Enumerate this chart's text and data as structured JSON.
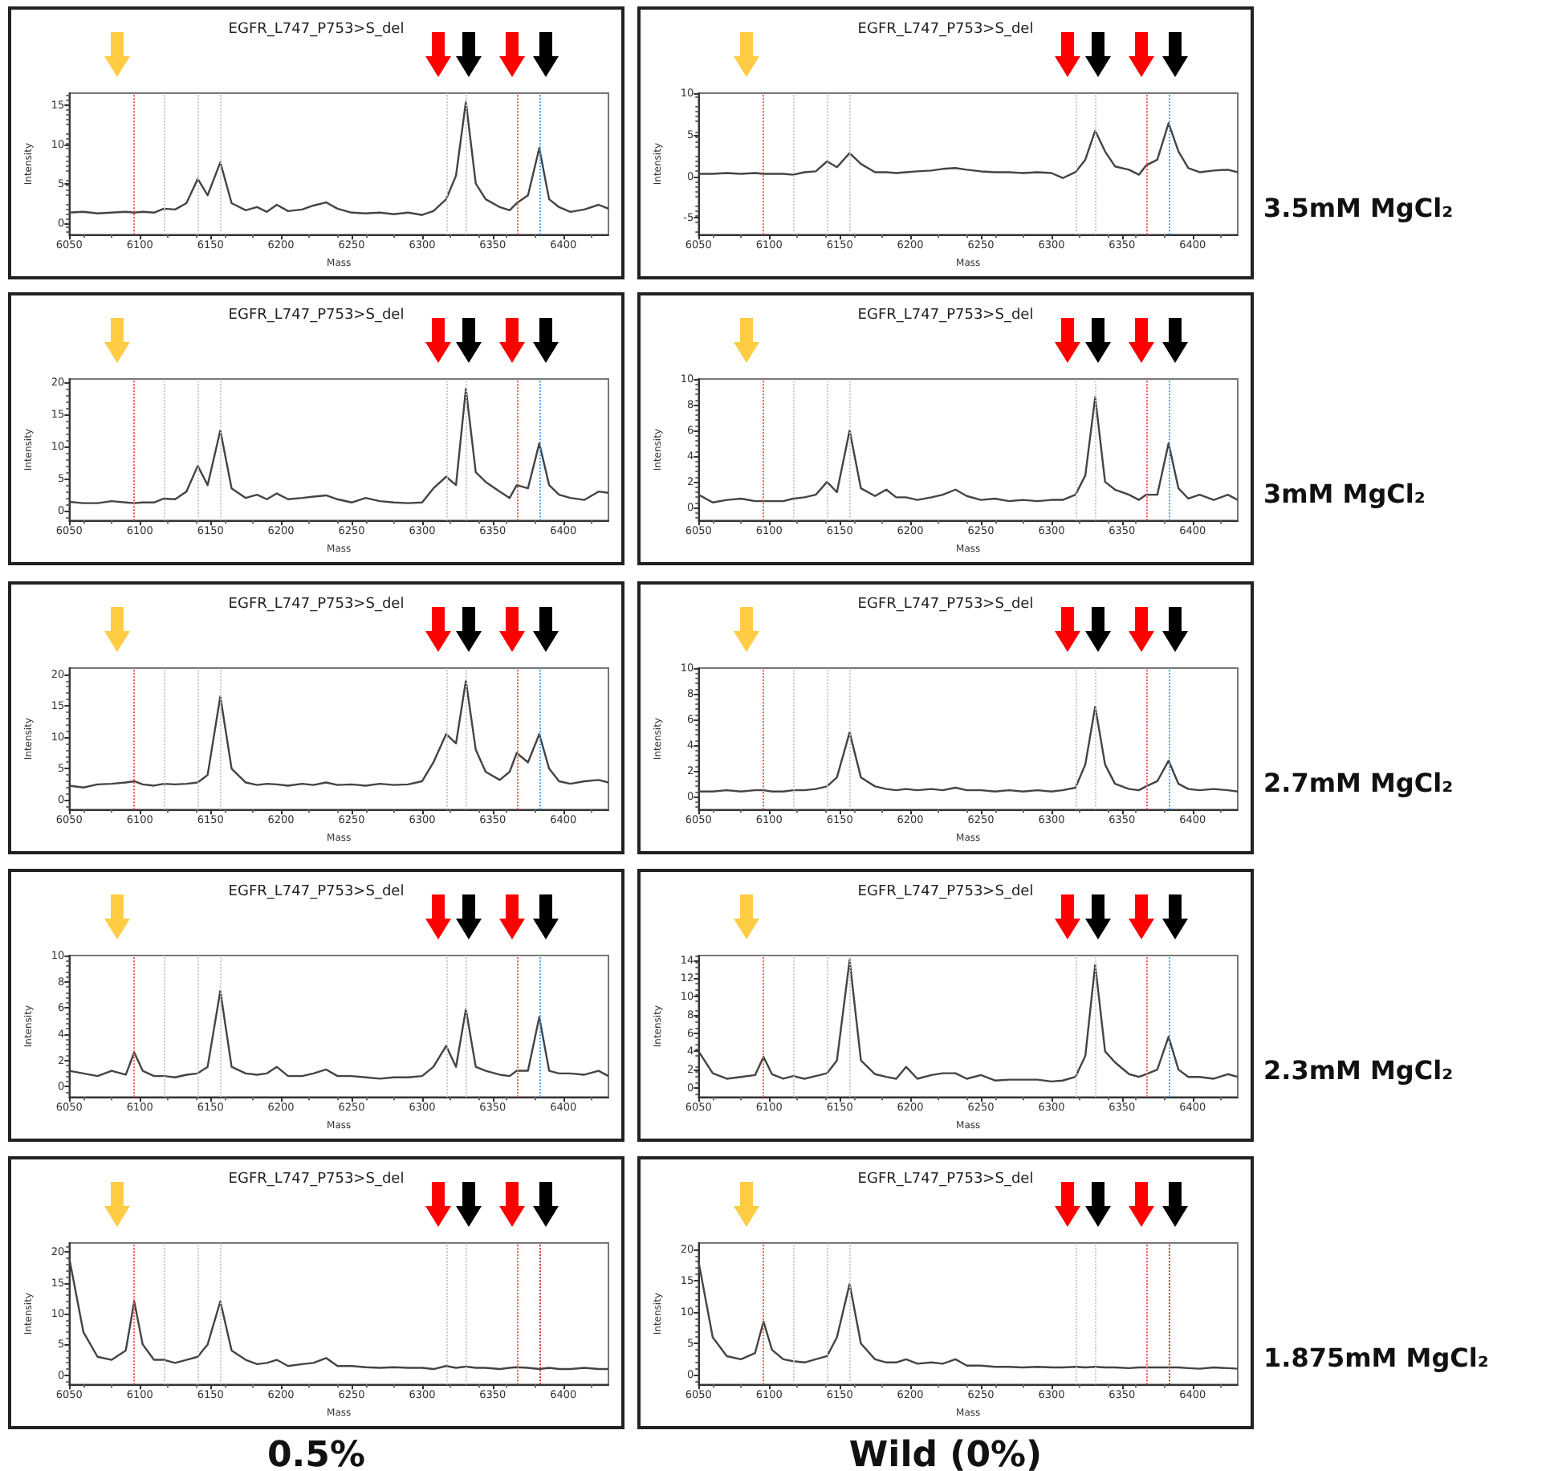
{
  "chart_data": [
    {
      "type": "line",
      "title": "EGFR_L747_P753>S_del",
      "xlabel": "Mass",
      "ylabel": "Intensity",
      "color": "#444444",
      "marker": "none",
      "line_style": "solid",
      "x": [
        6050,
        6060,
        6070,
        6080,
        6090,
        6096,
        6102,
        6110,
        6117,
        6125,
        6133,
        6141,
        6148,
        6157,
        6165,
        6175,
        6183,
        6190,
        6197,
        6205,
        6215,
        6223,
        6232,
        6240,
        6250,
        6260,
        6270,
        6280,
        6290,
        6300,
        6308,
        6317,
        6324,
        6331,
        6338,
        6345,
        6355,
        6362,
        6367,
        6375,
        6383,
        6390,
        6397,
        6405,
        6415,
        6425,
        6432
      ],
      "values": [
        1.3,
        1.4,
        1.2,
        1.3,
        1.4,
        1.3,
        1.4,
        1.3,
        1.8,
        1.7,
        2.5,
        5.6,
        3.5,
        7.7,
        2.5,
        1.6,
        2.0,
        1.4,
        2.3,
        1.5,
        1.7,
        2.2,
        2.6,
        1.8,
        1.3,
        1.2,
        1.3,
        1.1,
        1.3,
        1.0,
        1.5,
        3.0,
        6.0,
        15.4,
        5.0,
        3.0,
        2.0,
        1.6,
        2.5,
        3.5,
        9.5,
        3.0,
        2.0,
        1.4,
        1.7,
        2.3,
        1.8
      ],
      "xlim": [
        6050,
        6432
      ],
      "xticks": [
        6050,
        6100,
        6150,
        6200,
        6250,
        6300,
        6350,
        6400
      ],
      "ylim": [
        -1.5,
        16.5
      ],
      "yticks": [
        0,
        5,
        10,
        15
      ],
      "ref_lines": [
        {
          "axis": "x",
          "value": 6096,
          "color": "#ff5050",
          "line_style": "dotted"
        },
        {
          "axis": "x",
          "value": 6117,
          "color": "#c8c8c8",
          "line_style": "dotted"
        },
        {
          "axis": "x",
          "value": 6141,
          "color": "#c8c8c8",
          "line_style": "dotted"
        },
        {
          "axis": "x",
          "value": 6157,
          "color": "#c8c8c8",
          "line_style": "dotted"
        },
        {
          "axis": "x",
          "value": 6317,
          "color": "#c8c8c8",
          "line_style": "dotted"
        },
        {
          "axis": "x",
          "value": 6331,
          "color": "#c8c8c8",
          "line_style": "dotted"
        },
        {
          "axis": "x",
          "value": 6367,
          "color": "#ff5050",
          "line_style": "dotted"
        },
        {
          "axis": "x",
          "value": 6383,
          "color": "#3fa0ff",
          "line_style": "dotted"
        }
      ]
    },
    {
      "type": "line",
      "title": "EGFR_L747_P753>S_del",
      "xlabel": "Mass",
      "ylabel": "Intensity",
      "color": "#444444",
      "marker": "none",
      "line_style": "solid",
      "x": [
        6050,
        6060,
        6070,
        6080,
        6090,
        6096,
        6102,
        6110,
        6117,
        6125,
        6133,
        6141,
        6148,
        6157,
        6165,
        6175,
        6183,
        6190,
        6197,
        6205,
        6215,
        6223,
        6232,
        6240,
        6250,
        6260,
        6270,
        6280,
        6290,
        6300,
        6308,
        6317,
        6324,
        6331,
        6338,
        6345,
        6355,
        6362,
        6367,
        6375,
        6383,
        6390,
        6397,
        6405,
        6415,
        6425,
        6432
      ],
      "values": [
        0.3,
        0.3,
        0.4,
        0.3,
        0.4,
        0.3,
        0.3,
        0.3,
        0.2,
        0.5,
        0.6,
        1.8,
        1.1,
        2.8,
        1.5,
        0.5,
        0.5,
        0.4,
        0.5,
        0.6,
        0.7,
        0.9,
        1.0,
        0.8,
        0.6,
        0.5,
        0.5,
        0.4,
        0.5,
        0.4,
        -0.2,
        0.5,
        2.0,
        5.5,
        3.0,
        1.2,
        0.8,
        0.2,
        1.3,
        2.0,
        6.4,
        3.0,
        1.0,
        0.5,
        0.7,
        0.8,
        0.5
      ],
      "xlim": [
        6050,
        6432
      ],
      "xticks": [
        6050,
        6100,
        6150,
        6200,
        6250,
        6300,
        6350,
        6400
      ],
      "ylim": [
        -7,
        10
      ],
      "yticks": [
        -5,
        0,
        5,
        10
      ],
      "ref_lines": [
        {
          "axis": "x",
          "value": 6096,
          "color": "#ff5050",
          "line_style": "dotted"
        },
        {
          "axis": "x",
          "value": 6117,
          "color": "#c8c8c8",
          "line_style": "dotted"
        },
        {
          "axis": "x",
          "value": 6141,
          "color": "#c8c8c8",
          "line_style": "dotted"
        },
        {
          "axis": "x",
          "value": 6157,
          "color": "#c8c8c8",
          "line_style": "dotted"
        },
        {
          "axis": "x",
          "value": 6317,
          "color": "#c8c8c8",
          "line_style": "dotted"
        },
        {
          "axis": "x",
          "value": 6331,
          "color": "#c8c8c8",
          "line_style": "dotted"
        },
        {
          "axis": "x",
          "value": 6367,
          "color": "#ff5050",
          "line_style": "dotted"
        },
        {
          "axis": "x",
          "value": 6383,
          "color": "#3fa0ff",
          "line_style": "dotted"
        }
      ],
      "annotations": [
        "3.5mM MgCl₂"
      ]
    },
    {
      "type": "line",
      "title": "EGFR_L747_P753>S_del",
      "xlabel": "Mass",
      "ylabel": "Intensity",
      "color": "#444444",
      "marker": "none",
      "line_style": "solid",
      "x": [
        6050,
        6060,
        6070,
        6080,
        6090,
        6096,
        6102,
        6110,
        6117,
        6125,
        6133,
        6141,
        6148,
        6157,
        6165,
        6175,
        6183,
        6190,
        6197,
        6205,
        6215,
        6223,
        6232,
        6240,
        6250,
        6260,
        6270,
        6280,
        6290,
        6300,
        6308,
        6317,
        6324,
        6331,
        6338,
        6345,
        6355,
        6362,
        6367,
        6375,
        6383,
        6390,
        6397,
        6405,
        6415,
        6425,
        6432
      ],
      "values": [
        1.4,
        1.2,
        1.2,
        1.5,
        1.3,
        1.2,
        1.3,
        1.3,
        1.9,
        1.8,
        3.0,
        7.0,
        4.0,
        12.5,
        3.5,
        2.0,
        2.5,
        1.8,
        2.7,
        1.8,
        2.0,
        2.2,
        2.4,
        1.8,
        1.3,
        2.0,
        1.5,
        1.3,
        1.2,
        1.3,
        3.5,
        5.3,
        4.0,
        19.0,
        6.0,
        4.5,
        3.0,
        2.0,
        4.0,
        3.5,
        10.5,
        4.0,
        2.5,
        2.0,
        1.7,
        3.0,
        2.8
      ],
      "xlim": [
        6050,
        6432
      ],
      "xticks": [
        6050,
        6100,
        6150,
        6200,
        6250,
        6300,
        6350,
        6400
      ],
      "ylim": [
        -1.5,
        20.5
      ],
      "yticks": [
        0,
        5,
        10,
        15,
        20
      ],
      "ref_lines": [
        {
          "axis": "x",
          "value": 6096,
          "color": "#ff5050",
          "line_style": "dotted"
        },
        {
          "axis": "x",
          "value": 6117,
          "color": "#c8c8c8",
          "line_style": "dotted"
        },
        {
          "axis": "x",
          "value": 6141,
          "color": "#c8c8c8",
          "line_style": "dotted"
        },
        {
          "axis": "x",
          "value": 6157,
          "color": "#c8c8c8",
          "line_style": "dotted"
        },
        {
          "axis": "x",
          "value": 6317,
          "color": "#c8c8c8",
          "line_style": "dotted"
        },
        {
          "axis": "x",
          "value": 6331,
          "color": "#c8c8c8",
          "line_style": "dotted"
        },
        {
          "axis": "x",
          "value": 6367,
          "color": "#ff5050",
          "line_style": "dotted"
        },
        {
          "axis": "x",
          "value": 6383,
          "color": "#3fa0ff",
          "line_style": "dotted"
        }
      ]
    },
    {
      "type": "line",
      "title": "EGFR_L747_P753>S_del",
      "xlabel": "Mass",
      "ylabel": "Intensity",
      "color": "#444444",
      "marker": "none",
      "line_style": "solid",
      "x": [
        6050,
        6060,
        6070,
        6080,
        6090,
        6096,
        6102,
        6110,
        6117,
        6125,
        6133,
        6141,
        6148,
        6157,
        6165,
        6175,
        6183,
        6190,
        6197,
        6205,
        6215,
        6223,
        6232,
        6240,
        6250,
        6260,
        6270,
        6280,
        6290,
        6300,
        6308,
        6317,
        6324,
        6331,
        6338,
        6345,
        6355,
        6362,
        6367,
        6375,
        6383,
        6390,
        6397,
        6405,
        6415,
        6425,
        6432
      ],
      "values": [
        1.0,
        0.4,
        0.6,
        0.7,
        0.5,
        0.5,
        0.5,
        0.5,
        0.7,
        0.8,
        1.0,
        2.0,
        1.2,
        6.0,
        1.5,
        0.9,
        1.4,
        0.8,
        0.8,
        0.6,
        0.8,
        1.0,
        1.4,
        0.9,
        0.6,
        0.7,
        0.5,
        0.6,
        0.5,
        0.6,
        0.6,
        1.0,
        2.5,
        8.6,
        2.0,
        1.4,
        1.0,
        0.6,
        1.0,
        1.0,
        5.0,
        1.5,
        0.7,
        1.0,
        0.6,
        1.0,
        0.6
      ],
      "xlim": [
        6050,
        6432
      ],
      "xticks": [
        6050,
        6100,
        6150,
        6200,
        6250,
        6300,
        6350,
        6400
      ],
      "ylim": [
        -1,
        10
      ],
      "yticks": [
        0,
        2,
        4,
        6,
        8,
        10
      ],
      "ref_lines": [
        {
          "axis": "x",
          "value": 6096,
          "color": "#ff5050",
          "line_style": "dotted"
        },
        {
          "axis": "x",
          "value": 6117,
          "color": "#c8c8c8",
          "line_style": "dotted"
        },
        {
          "axis": "x",
          "value": 6141,
          "color": "#c8c8c8",
          "line_style": "dotted"
        },
        {
          "axis": "x",
          "value": 6157,
          "color": "#c8c8c8",
          "line_style": "dotted"
        },
        {
          "axis": "x",
          "value": 6317,
          "color": "#c8c8c8",
          "line_style": "dotted"
        },
        {
          "axis": "x",
          "value": 6331,
          "color": "#c8c8c8",
          "line_style": "dotted"
        },
        {
          "axis": "x",
          "value": 6367,
          "color": "#ff5050",
          "line_style": "dotted"
        },
        {
          "axis": "x",
          "value": 6383,
          "color": "#3fa0ff",
          "line_style": "dotted"
        }
      ],
      "annotations": [
        "3mM MgCl₂"
      ]
    },
    {
      "type": "line",
      "title": "EGFR_L747_P753>S_del",
      "xlabel": "Mass",
      "ylabel": "Intensity",
      "color": "#444444",
      "marker": "none",
      "line_style": "solid",
      "x": [
        6050,
        6060,
        6070,
        6080,
        6090,
        6096,
        6102,
        6110,
        6117,
        6125,
        6133,
        6141,
        6148,
        6157,
        6165,
        6175,
        6183,
        6190,
        6197,
        6205,
        6215,
        6223,
        6232,
        6240,
        6250,
        6260,
        6270,
        6280,
        6290,
        6300,
        6308,
        6317,
        6324,
        6331,
        6338,
        6345,
        6355,
        6362,
        6367,
        6375,
        6383,
        6390,
        6397,
        6405,
        6415,
        6425,
        6432
      ],
      "values": [
        2.3,
        2.0,
        2.5,
        2.6,
        2.8,
        3.0,
        2.5,
        2.3,
        2.6,
        2.5,
        2.6,
        2.8,
        4.0,
        16.5,
        5.0,
        2.8,
        2.4,
        2.6,
        2.5,
        2.3,
        2.6,
        2.4,
        2.8,
        2.4,
        2.5,
        2.3,
        2.6,
        2.4,
        2.5,
        3.0,
        6.0,
        10.5,
        9.0,
        19.0,
        8.0,
        4.5,
        3.2,
        4.5,
        7.5,
        6.0,
        10.5,
        5.0,
        3.0,
        2.6,
        3.0,
        3.2,
        2.8
      ],
      "xlim": [
        6050,
        6432
      ],
      "xticks": [
        6050,
        6100,
        6150,
        6200,
        6250,
        6300,
        6350,
        6400
      ],
      "ylim": [
        -1.5,
        21
      ],
      "yticks": [
        0,
        5,
        10,
        15,
        20
      ],
      "ref_lines": [
        {
          "axis": "x",
          "value": 6096,
          "color": "#ff5050",
          "line_style": "dotted"
        },
        {
          "axis": "x",
          "value": 6117,
          "color": "#c8c8c8",
          "line_style": "dotted"
        },
        {
          "axis": "x",
          "value": 6141,
          "color": "#c8c8c8",
          "line_style": "dotted"
        },
        {
          "axis": "x",
          "value": 6157,
          "color": "#c8c8c8",
          "line_style": "dotted"
        },
        {
          "axis": "x",
          "value": 6317,
          "color": "#c8c8c8",
          "line_style": "dotted"
        },
        {
          "axis": "x",
          "value": 6331,
          "color": "#c8c8c8",
          "line_style": "dotted"
        },
        {
          "axis": "x",
          "value": 6367,
          "color": "#ff5050",
          "line_style": "dotted"
        },
        {
          "axis": "x",
          "value": 6383,
          "color": "#3fa0ff",
          "line_style": "dotted"
        }
      ]
    },
    {
      "type": "line",
      "title": "EGFR_L747_P753>S_del",
      "xlabel": "Mass",
      "ylabel": "Intensity",
      "color": "#444444",
      "marker": "none",
      "line_style": "solid",
      "x": [
        6050,
        6060,
        6070,
        6080,
        6090,
        6096,
        6102,
        6110,
        6117,
        6125,
        6133,
        6141,
        6148,
        6157,
        6165,
        6175,
        6183,
        6190,
        6197,
        6205,
        6215,
        6223,
        6232,
        6240,
        6250,
        6260,
        6270,
        6280,
        6290,
        6300,
        6308,
        6317,
        6324,
        6331,
        6338,
        6345,
        6355,
        6362,
        6367,
        6375,
        6383,
        6390,
        6397,
        6405,
        6415,
        6425,
        6432
      ],
      "values": [
        0.4,
        0.4,
        0.5,
        0.4,
        0.5,
        0.5,
        0.4,
        0.4,
        0.5,
        0.5,
        0.6,
        0.8,
        1.5,
        5.0,
        1.5,
        0.8,
        0.6,
        0.5,
        0.6,
        0.5,
        0.6,
        0.5,
        0.7,
        0.5,
        0.5,
        0.4,
        0.5,
        0.4,
        0.5,
        0.4,
        0.5,
        0.7,
        2.5,
        7.0,
        2.5,
        1.0,
        0.6,
        0.5,
        0.8,
        1.2,
        2.8,
        1.0,
        0.6,
        0.5,
        0.6,
        0.5,
        0.4
      ],
      "xlim": [
        6050,
        6432
      ],
      "xticks": [
        6050,
        6100,
        6150,
        6200,
        6250,
        6300,
        6350,
        6400
      ],
      "ylim": [
        -1,
        10
      ],
      "yticks": [
        0,
        2,
        4,
        6,
        8,
        10
      ],
      "ref_lines": [
        {
          "axis": "x",
          "value": 6096,
          "color": "#ff5050",
          "line_style": "dotted"
        },
        {
          "axis": "x",
          "value": 6117,
          "color": "#c8c8c8",
          "line_style": "dotted"
        },
        {
          "axis": "x",
          "value": 6141,
          "color": "#c8c8c8",
          "line_style": "dotted"
        },
        {
          "axis": "x",
          "value": 6157,
          "color": "#c8c8c8",
          "line_style": "dotted"
        },
        {
          "axis": "x",
          "value": 6317,
          "color": "#c8c8c8",
          "line_style": "dotted"
        },
        {
          "axis": "x",
          "value": 6331,
          "color": "#c8c8c8",
          "line_style": "dotted"
        },
        {
          "axis": "x",
          "value": 6367,
          "color": "#ff5050",
          "line_style": "dotted"
        },
        {
          "axis": "x",
          "value": 6383,
          "color": "#3fa0ff",
          "line_style": "dotted"
        }
      ],
      "annotations": [
        "2.7mM MgCl₂"
      ]
    },
    {
      "type": "line",
      "title": "EGFR_L747_P753>S_del",
      "xlabel": "Mass",
      "ylabel": "Intensity",
      "color": "#444444",
      "marker": "none",
      "line_style": "solid",
      "x": [
        6050,
        6060,
        6070,
        6080,
        6090,
        6096,
        6102,
        6110,
        6117,
        6125,
        6133,
        6141,
        6148,
        6157,
        6165,
        6175,
        6183,
        6190,
        6197,
        6205,
        6215,
        6223,
        6232,
        6240,
        6250,
        6260,
        6270,
        6280,
        6290,
        6300,
        6308,
        6317,
        6324,
        6331,
        6338,
        6345,
        6355,
        6362,
        6367,
        6375,
        6383,
        6390,
        6397,
        6405,
        6415,
        6425,
        6432
      ],
      "values": [
        1.2,
        1.0,
        0.8,
        1.2,
        0.9,
        2.6,
        1.2,
        0.8,
        0.8,
        0.7,
        0.9,
        1.0,
        1.5,
        7.3,
        1.5,
        1.0,
        0.9,
        1.0,
        1.5,
        0.8,
        0.8,
        1.0,
        1.3,
        0.8,
        0.8,
        0.7,
        0.6,
        0.7,
        0.7,
        0.8,
        1.5,
        3.1,
        1.5,
        5.9,
        1.5,
        1.2,
        0.9,
        0.8,
        1.2,
        1.2,
        5.3,
        1.2,
        1.0,
        1.0,
        0.9,
        1.2,
        0.8
      ],
      "xlim": [
        6050,
        6432
      ],
      "xticks": [
        6050,
        6100,
        6150,
        6200,
        6250,
        6300,
        6350,
        6400
      ],
      "ylim": [
        -0.8,
        10
      ],
      "yticks": [
        0,
        2,
        4,
        6,
        8,
        10
      ],
      "ref_lines": [
        {
          "axis": "x",
          "value": 6096,
          "color": "#ff5050",
          "line_style": "dotted"
        },
        {
          "axis": "x",
          "value": 6117,
          "color": "#c8c8c8",
          "line_style": "dotted"
        },
        {
          "axis": "x",
          "value": 6141,
          "color": "#c8c8c8",
          "line_style": "dotted"
        },
        {
          "axis": "x",
          "value": 6157,
          "color": "#c8c8c8",
          "line_style": "dotted"
        },
        {
          "axis": "x",
          "value": 6317,
          "color": "#c8c8c8",
          "line_style": "dotted"
        },
        {
          "axis": "x",
          "value": 6331,
          "color": "#c8c8c8",
          "line_style": "dotted"
        },
        {
          "axis": "x",
          "value": 6367,
          "color": "#ff5050",
          "line_style": "dotted"
        },
        {
          "axis": "x",
          "value": 6383,
          "color": "#3fa0ff",
          "line_style": "dotted"
        }
      ]
    },
    {
      "type": "line",
      "title": "EGFR_L747_P753>S_del",
      "xlabel": "Mass",
      "ylabel": "Intensity",
      "color": "#444444",
      "marker": "none",
      "line_style": "solid",
      "x": [
        6050,
        6060,
        6070,
        6080,
        6090,
        6096,
        6102,
        6110,
        6117,
        6125,
        6133,
        6141,
        6148,
        6157,
        6165,
        6175,
        6183,
        6190,
        6197,
        6205,
        6215,
        6223,
        6232,
        6240,
        6250,
        6260,
        6270,
        6280,
        6290,
        6300,
        6308,
        6317,
        6324,
        6331,
        6338,
        6345,
        6355,
        6362,
        6367,
        6375,
        6383,
        6390,
        6397,
        6405,
        6415,
        6425,
        6432
      ],
      "values": [
        4.0,
        1.6,
        1.0,
        1.2,
        1.4,
        3.4,
        1.5,
        1.0,
        1.3,
        1.0,
        1.3,
        1.6,
        3.0,
        14.0,
        3.0,
        1.5,
        1.2,
        1.0,
        2.3,
        1.0,
        1.4,
        1.6,
        1.6,
        1.0,
        1.4,
        0.8,
        0.9,
        0.9,
        0.9,
        0.7,
        0.8,
        1.2,
        3.5,
        13.5,
        4.0,
        2.8,
        1.5,
        1.2,
        1.5,
        2.0,
        5.6,
        2.0,
        1.2,
        1.2,
        1.0,
        1.5,
        1.2
      ],
      "xlim": [
        6050,
        6432
      ],
      "xticks": [
        6050,
        6100,
        6150,
        6200,
        6250,
        6300,
        6350,
        6400
      ],
      "ylim": [
        -1,
        14.5
      ],
      "yticks": [
        0,
        2,
        4,
        6,
        8,
        10,
        12,
        14
      ],
      "ref_lines": [
        {
          "axis": "x",
          "value": 6096,
          "color": "#ff5050",
          "line_style": "dotted"
        },
        {
          "axis": "x",
          "value": 6117,
          "color": "#c8c8c8",
          "line_style": "dotted"
        },
        {
          "axis": "x",
          "value": 6141,
          "color": "#c8c8c8",
          "line_style": "dotted"
        },
        {
          "axis": "x",
          "value": 6157,
          "color": "#c8c8c8",
          "line_style": "dotted"
        },
        {
          "axis": "x",
          "value": 6317,
          "color": "#c8c8c8",
          "line_style": "dotted"
        },
        {
          "axis": "x",
          "value": 6331,
          "color": "#c8c8c8",
          "line_style": "dotted"
        },
        {
          "axis": "x",
          "value": 6367,
          "color": "#ff5050",
          "line_style": "dotted"
        },
        {
          "axis": "x",
          "value": 6383,
          "color": "#3fa0ff",
          "line_style": "dotted"
        }
      ],
      "annotations": [
        "2.3mM MgCl₂"
      ]
    },
    {
      "type": "line",
      "title": "EGFR_L747_P753>S_del",
      "xlabel": "Mass",
      "ylabel": "Intensity",
      "color": "#444444",
      "marker": "none",
      "line_style": "solid",
      "x": [
        6050,
        6060,
        6070,
        6080,
        6090,
        6096,
        6102,
        6110,
        6117,
        6125,
        6133,
        6141,
        6148,
        6157,
        6165,
        6175,
        6183,
        6190,
        6197,
        6205,
        6215,
        6223,
        6232,
        6240,
        6250,
        6260,
        6270,
        6280,
        6290,
        6300,
        6308,
        6317,
        6324,
        6331,
        6338,
        6345,
        6355,
        6362,
        6367,
        6375,
        6383,
        6390,
        6397,
        6405,
        6415,
        6425,
        6432
      ],
      "values": [
        19,
        7,
        3,
        2.5,
        4,
        12,
        5,
        2.5,
        2.5,
        2,
        2.5,
        3,
        5,
        12,
        4,
        2.5,
        1.8,
        2,
        2.5,
        1.5,
        1.8,
        2,
        2.8,
        1.5,
        1.5,
        1.3,
        1.2,
        1.3,
        1.2,
        1.2,
        1.0,
        1.5,
        1.2,
        1.4,
        1.2,
        1.2,
        1.0,
        1.2,
        1.3,
        1.2,
        1.0,
        1.2,
        1.0,
        1.0,
        1.2,
        1.0,
        1.0
      ],
      "xlim": [
        6050,
        6432
      ],
      "xticks": [
        6050,
        6100,
        6150,
        6200,
        6250,
        6300,
        6350,
        6400
      ],
      "ylim": [
        -1.5,
        21.5
      ],
      "yticks": [
        0,
        5,
        10,
        15,
        20
      ],
      "ref_lines": [
        {
          "axis": "x",
          "value": 6096,
          "color": "#ff5050",
          "line_style": "dotted"
        },
        {
          "axis": "x",
          "value": 6117,
          "color": "#c8c8c8",
          "line_style": "dotted"
        },
        {
          "axis": "x",
          "value": 6141,
          "color": "#c8c8c8",
          "line_style": "dotted"
        },
        {
          "axis": "x",
          "value": 6157,
          "color": "#c8c8c8",
          "line_style": "dotted"
        },
        {
          "axis": "x",
          "value": 6317,
          "color": "#c8c8c8",
          "line_style": "dotted"
        },
        {
          "axis": "x",
          "value": 6331,
          "color": "#c8c8c8",
          "line_style": "dotted"
        },
        {
          "axis": "x",
          "value": 6367,
          "color": "#ff5050",
          "line_style": "dotted"
        },
        {
          "axis": "x",
          "value": 6383,
          "color": "#c03030",
          "line_style": "dotted"
        }
      ],
      "annotations": [
        "0.5%"
      ]
    },
    {
      "type": "line",
      "title": "EGFR_L747_P753>S_del",
      "xlabel": "Mass",
      "ylabel": "Intensity",
      "color": "#444444",
      "marker": "none",
      "line_style": "solid",
      "x": [
        6050,
        6060,
        6070,
        6080,
        6090,
        6096,
        6102,
        6110,
        6117,
        6125,
        6133,
        6141,
        6148,
        6157,
        6165,
        6175,
        6183,
        6190,
        6197,
        6205,
        6215,
        6223,
        6232,
        6240,
        6250,
        6260,
        6270,
        6280,
        6290,
        6300,
        6308,
        6317,
        6324,
        6331,
        6338,
        6345,
        6355,
        6362,
        6367,
        6375,
        6383,
        6390,
        6397,
        6405,
        6415,
        6425,
        6432
      ],
      "values": [
        18,
        6,
        3,
        2.5,
        3.5,
        8.5,
        4,
        2.5,
        2.2,
        2,
        2.5,
        3,
        6,
        14.5,
        5,
        2.5,
        2,
        2,
        2.5,
        1.8,
        2,
        1.8,
        2.5,
        1.5,
        1.5,
        1.3,
        1.3,
        1.2,
        1.3,
        1.2,
        1.2,
        1.3,
        1.2,
        1.3,
        1.2,
        1.2,
        1.1,
        1.2,
        1.2,
        1.2,
        1.2,
        1.2,
        1.1,
        1.0,
        1.2,
        1.1,
        1.0
      ],
      "xlim": [
        6050,
        6432
      ],
      "xticks": [
        6050,
        6100,
        6150,
        6200,
        6250,
        6300,
        6350,
        6400
      ],
      "ylim": [
        -1.5,
        21
      ],
      "yticks": [
        0,
        5,
        10,
        15,
        20
      ],
      "ref_lines": [
        {
          "axis": "x",
          "value": 6096,
          "color": "#ff5050",
          "line_style": "dotted"
        },
        {
          "axis": "x",
          "value": 6117,
          "color": "#c8c8c8",
          "line_style": "dotted"
        },
        {
          "axis": "x",
          "value": 6141,
          "color": "#c8c8c8",
          "line_style": "dotted"
        },
        {
          "axis": "x",
          "value": 6157,
          "color": "#c8c8c8",
          "line_style": "dotted"
        },
        {
          "axis": "x",
          "value": 6317,
          "color": "#c8c8c8",
          "line_style": "dotted"
        },
        {
          "axis": "x",
          "value": 6331,
          "color": "#c8c8c8",
          "line_style": "dotted"
        },
        {
          "axis": "x",
          "value": 6367,
          "color": "#ff5050",
          "line_style": "dotted"
        },
        {
          "axis": "x",
          "value": 6383,
          "color": "#c03030",
          "line_style": "dotted"
        }
      ],
      "annotations": [
        "1.875mM MgCl₂",
        "Wild (0%)"
      ]
    }
  ]
}
